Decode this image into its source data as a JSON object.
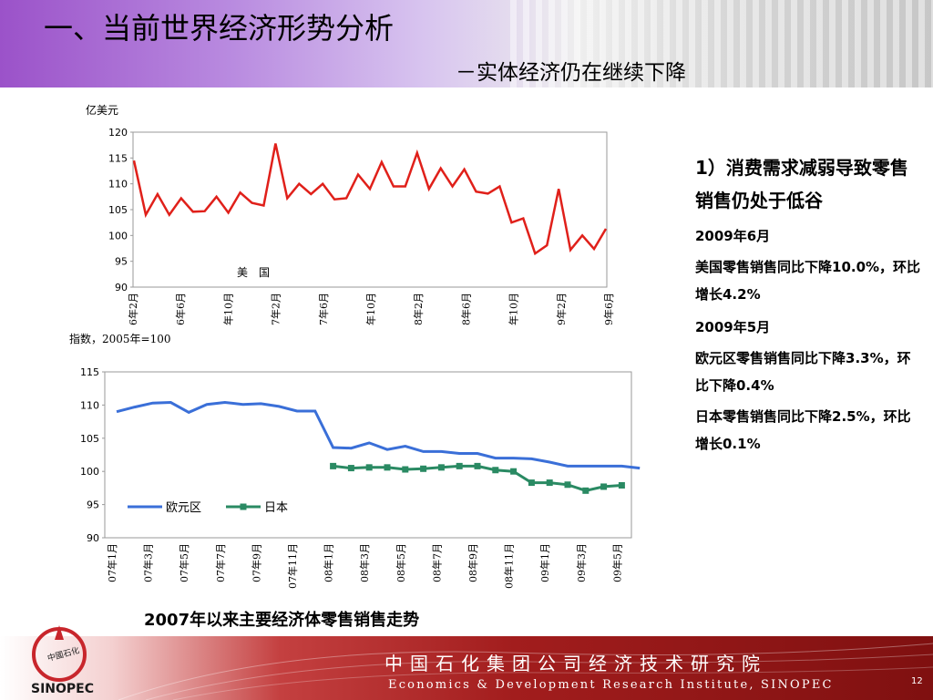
{
  "title": "一、当前世界经济形势分析",
  "subtitle": "－实体经济仍在继续下降",
  "side_text": {
    "heading": "1）消费需求减弱导致零售销售仍处于低谷",
    "us_date": "2009年6月",
    "us_text": "美国零售销售同比下降10.0%，环比增长4.2%",
    "eu_date": "2009年5月",
    "eu_text": "欧元区零售销售同比下降3.3%，环比下降0.4%",
    "jp_text": "日本零售销售同比下降2.5%，环比增长0.1%"
  },
  "caption": "2007年以来主要经济体零售销售走势",
  "footer": {
    "cn": "中国石化集团公司经济技术研究院",
    "en": "Economics & Development Research Institute, SINOPEC",
    "page": "12"
  },
  "logo": {
    "text_cn": "中國石化",
    "text_en": "SINOPEC"
  },
  "colors": {
    "us_line": "#e0201a",
    "eu_line": "#3a6fd8",
    "jp_line": "#2a8a63"
  },
  "chart_data": [
    {
      "type": "line",
      "ylabel": "亿美元",
      "ylim": [
        90,
        120
      ],
      "yticks": [
        "90",
        "95",
        "100",
        "105",
        "110",
        "115",
        "120"
      ],
      "series_label": "美　国",
      "xticks": [
        "6年2月",
        "6年6月",
        "年10月",
        "7年2月",
        "7年6月",
        "年10月",
        "8年2月",
        "8年6月",
        "年10月",
        "9年2月",
        "9年6月"
      ],
      "series": [
        {
          "name": "美国",
          "values": [
            114.5,
            104,
            108,
            104,
            107.2,
            104.6,
            104.7,
            107.5,
            104.4,
            108.3,
            106.3,
            105.8,
            117.8,
            107.2,
            110,
            108,
            110,
            107,
            107.2,
            111.8,
            109,
            114.2,
            109.5,
            109.5,
            116,
            109,
            113,
            109.5,
            112.8,
            108.5,
            108.1,
            109.5,
            102.5,
            103.3,
            96.5,
            98.1,
            109,
            97.2,
            100,
            97.4,
            101.3
          ]
        }
      ]
    },
    {
      "type": "line",
      "ylabel": "指数，2005年=100",
      "ylim": [
        90,
        115
      ],
      "yticks": [
        "90",
        "95",
        "100",
        "105",
        "110",
        "115"
      ],
      "xticks": [
        "07年1月",
        "07年3月",
        "07年5月",
        "07年7月",
        "07年9月",
        "07年11月",
        "08年1月",
        "08年3月",
        "08年5月",
        "08年7月",
        "08年9月",
        "08年11月",
        "09年1月",
        "09年3月",
        "09年5月"
      ],
      "series": [
        {
          "name": "欧元区",
          "values": [
            109,
            109.7,
            110.3,
            110.4,
            108.9,
            110.1,
            110.4,
            110.1,
            110.2,
            109.8,
            109.1,
            109.1,
            103.6,
            103.5,
            104.3,
            103.3,
            103.8,
            103,
            103,
            102.7,
            102.7,
            102,
            102,
            101.9,
            101.4,
            100.8,
            100.8,
            100.8,
            100.8,
            100.5
          ]
        },
        {
          "name": "日本",
          "start_index": 12,
          "values": [
            100.8,
            100.5,
            100.6,
            100.6,
            100.3,
            100.4,
            100.6,
            100.8,
            100.8,
            100.2,
            100,
            98.3,
            98.3,
            98,
            97.1,
            97.7,
            97.9
          ]
        }
      ]
    }
  ]
}
